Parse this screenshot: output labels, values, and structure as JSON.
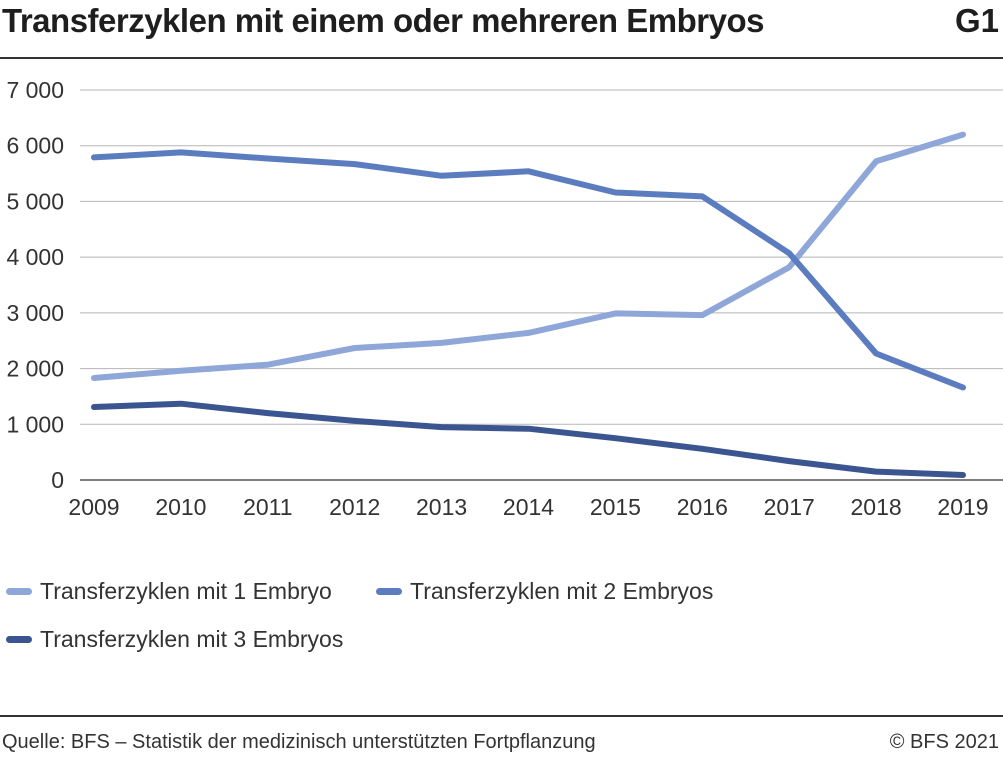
{
  "header": {
    "title": "Transferzyklen mit einem oder mehreren Embryos",
    "code": "G1"
  },
  "footer": {
    "source": "Quelle: BFS – Statistik der medizinisch unterstützten Fortpflanzung",
    "copyright": "© BFS 2021"
  },
  "chart_data": {
    "type": "line",
    "title": "Transferzyklen mit einem oder mehreren Embryos",
    "xlabel": "",
    "ylabel": "",
    "x": [
      "2009",
      "2010",
      "2011",
      "2012",
      "2013",
      "2014",
      "2015",
      "2016",
      "2017",
      "2018",
      "2019"
    ],
    "ylim": [
      0,
      7000
    ],
    "yticks": [
      0,
      1000,
      2000,
      3000,
      4000,
      5000,
      6000,
      7000
    ],
    "ytick_labels": [
      "0",
      "1 000",
      "2 000",
      "3 000",
      "4 000",
      "5 000",
      "6 000",
      "7 000"
    ],
    "grid": true,
    "legend_position": "bottom",
    "series": [
      {
        "name": "Transferzyklen mit 1 Embryo",
        "color": "#8ea7d8",
        "values": [
          1830,
          1960,
          2070,
          2370,
          2460,
          2640,
          2990,
          2960,
          3820,
          5720,
          6200
        ]
      },
      {
        "name": "Transferzyklen mit 2 Embryos",
        "color": "#5b7dc0",
        "values": [
          5790,
          5880,
          5770,
          5670,
          5460,
          5540,
          5160,
          5090,
          4070,
          2270,
          1660
        ]
      },
      {
        "name": "Transferzyklen mit 3 Embryos",
        "color": "#3a5590",
        "values": [
          1310,
          1370,
          1200,
          1060,
          950,
          920,
          750,
          560,
          340,
          150,
          90
        ]
      }
    ]
  }
}
